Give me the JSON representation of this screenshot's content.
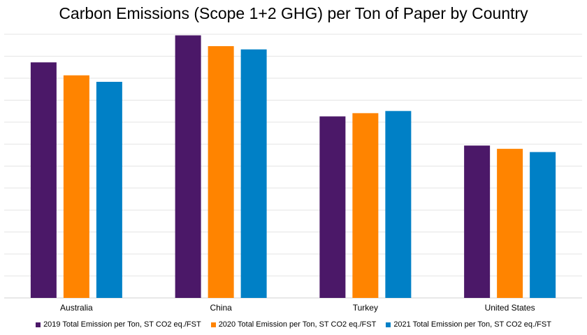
{
  "chart_data": {
    "type": "bar",
    "title": "Carbon Emissions (Scope 1+2  GHG) per Ton of Paper by Country",
    "xlabel": "",
    "ylabel": "",
    "categories": [
      "Australia",
      "China",
      "Turkey",
      "United States"
    ],
    "ylim": [
      0,
      12.2
    ],
    "grid": true,
    "legend_position": "bottom",
    "series": [
      {
        "name": "2019 Total Emission per Ton, ST CO2 eq./FST",
        "color": "#4b1868",
        "values": [
          10.9,
          12.15,
          8.4,
          7.05
        ]
      },
      {
        "name": "2020 Total Emission per Ton, ST CO2 eq./FST",
        "color": "#ff8400",
        "values": [
          10.3,
          11.65,
          8.55,
          6.9
        ]
      },
      {
        "name": "2021 Total Emission per Ton, ST CO2 eq./FST",
        "color": "#0080c6",
        "values": [
          10.0,
          11.5,
          8.65,
          6.75
        ]
      }
    ]
  }
}
